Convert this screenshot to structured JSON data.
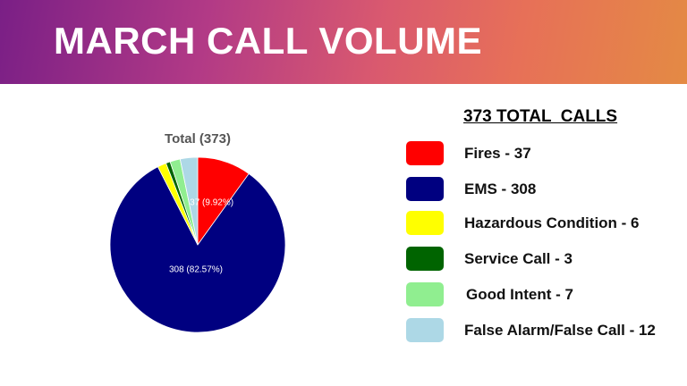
{
  "banner": {
    "title": "MARCH CALL VOLUME"
  },
  "legend": {
    "heading": "373 TOTAL  CALLS",
    "items": [
      {
        "label": "Fires - 37",
        "color": "#ff0000"
      },
      {
        "label": "EMS - 308",
        "color": "#000080"
      },
      {
        "label": "Hazardous Condition - 6",
        "color": "#ffff00"
      },
      {
        "label": "Service Call - 3",
        "color": "#006400"
      },
      {
        "label": "Good Intent - 7",
        "color": "#90ee90"
      },
      {
        "label": "False Alarm/False Call - 12",
        "color": "#add8e6"
      }
    ]
  },
  "chart_data": {
    "type": "pie",
    "title": "Total (373)",
    "categories": [
      "Fires",
      "EMS",
      "Hazardous Condition",
      "Service Call",
      "Good Intent",
      "False Alarm/False Call"
    ],
    "values": [
      37,
      308,
      6,
      3,
      7,
      12
    ],
    "colors": [
      "#ff0000",
      "#000080",
      "#ffff00",
      "#006400",
      "#90ee90",
      "#add8e6"
    ],
    "data_labels": [
      "37 (9.92%)",
      "308 (82.57%)",
      "",
      "",
      "",
      ""
    ]
  }
}
